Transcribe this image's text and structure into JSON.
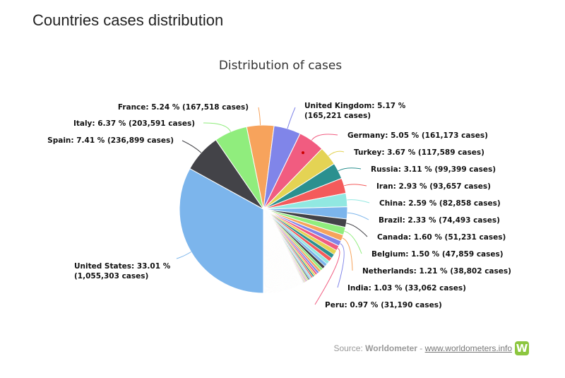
{
  "page": {
    "title": "Countries cases distribution"
  },
  "source": {
    "prefix": "Source: ",
    "name": "Worldometer",
    "separator": " - ",
    "link_text": "www.worldometers.info",
    "logo_letter": "W"
  },
  "chart_data": {
    "type": "pie",
    "title": "Distribution of cases",
    "slices": [
      {
        "name": "United States",
        "percent": 33.01,
        "cases": 1055303,
        "color": "#7cb5ec",
        "label": [
          "United States: 33.01 %",
          "(1,055,303 cases)"
        ]
      },
      {
        "name": "Spain",
        "percent": 7.41,
        "cases": 236899,
        "color": "#434348",
        "label": [
          "Spain: 7.41 % (236,899 cases)"
        ]
      },
      {
        "name": "Italy",
        "percent": 6.37,
        "cases": 203591,
        "color": "#90ed7d",
        "label": [
          "Italy: 6.37 % (203,591 cases)"
        ]
      },
      {
        "name": "France",
        "percent": 5.24,
        "cases": 167518,
        "color": "#f7a35c",
        "label": [
          "France: 5.24 % (167,518 cases)"
        ]
      },
      {
        "name": "United Kingdom",
        "percent": 5.17,
        "cases": 165221,
        "color": "#8085e9",
        "label": [
          "United Kingdom: 5.17 %",
          "(165,221 cases)"
        ]
      },
      {
        "name": "Germany",
        "percent": 5.05,
        "cases": 161173,
        "color": "#f15c80",
        "label": [
          "Germany: 5.05 % (161,173 cases)"
        ]
      },
      {
        "name": "Turkey",
        "percent": 3.67,
        "cases": 117589,
        "color": "#e4d354",
        "label": [
          "Turkey: 3.67 % (117,589 cases)"
        ]
      },
      {
        "name": "Russia",
        "percent": 3.11,
        "cases": 99399,
        "color": "#2b908f",
        "label": [
          "Russia: 3.11 % (99,399 cases)"
        ]
      },
      {
        "name": "Iran",
        "percent": 2.93,
        "cases": 93657,
        "color": "#f45b5b",
        "label": [
          "Iran: 2.93 % (93,657 cases)"
        ]
      },
      {
        "name": "China",
        "percent": 2.59,
        "cases": 82858,
        "color": "#91e8e1",
        "label": [
          "China: 2.59 % (82,858 cases)"
        ]
      },
      {
        "name": "Brazil",
        "percent": 2.33,
        "cases": 74493,
        "color": "#7cb5ec",
        "label": [
          "Brazil: 2.33 % (74,493 cases)"
        ]
      },
      {
        "name": "Canada",
        "percent": 1.6,
        "cases": 51231,
        "color": "#434348",
        "label": [
          "Canada: 1.60 % (51,231 cases)"
        ]
      },
      {
        "name": "Belgium",
        "percent": 1.5,
        "cases": 47859,
        "color": "#90ed7d",
        "label": [
          "Belgium: 1.50 % (47,859 cases)"
        ]
      },
      {
        "name": "Netherlands",
        "percent": 1.21,
        "cases": 38802,
        "color": "#f7a35c",
        "label": [
          "Netherlands: 1.21 % (38,802 cases)"
        ]
      },
      {
        "name": "India",
        "percent": 1.03,
        "cases": 33062,
        "color": "#8085e9",
        "label": [
          "India: 1.03 % (33,062 cases)"
        ]
      },
      {
        "name": "Peru",
        "percent": 0.97,
        "cases": 31190,
        "color": "#f15c80",
        "label": [
          "Peru: 0.97 % (31,190 cases)"
        ]
      }
    ],
    "palette": [
      "#7cb5ec",
      "#434348",
      "#90ed7d",
      "#f7a35c",
      "#8085e9",
      "#f15c80",
      "#e4d354",
      "#2b908f",
      "#f45b5b",
      "#91e8e1"
    ]
  }
}
